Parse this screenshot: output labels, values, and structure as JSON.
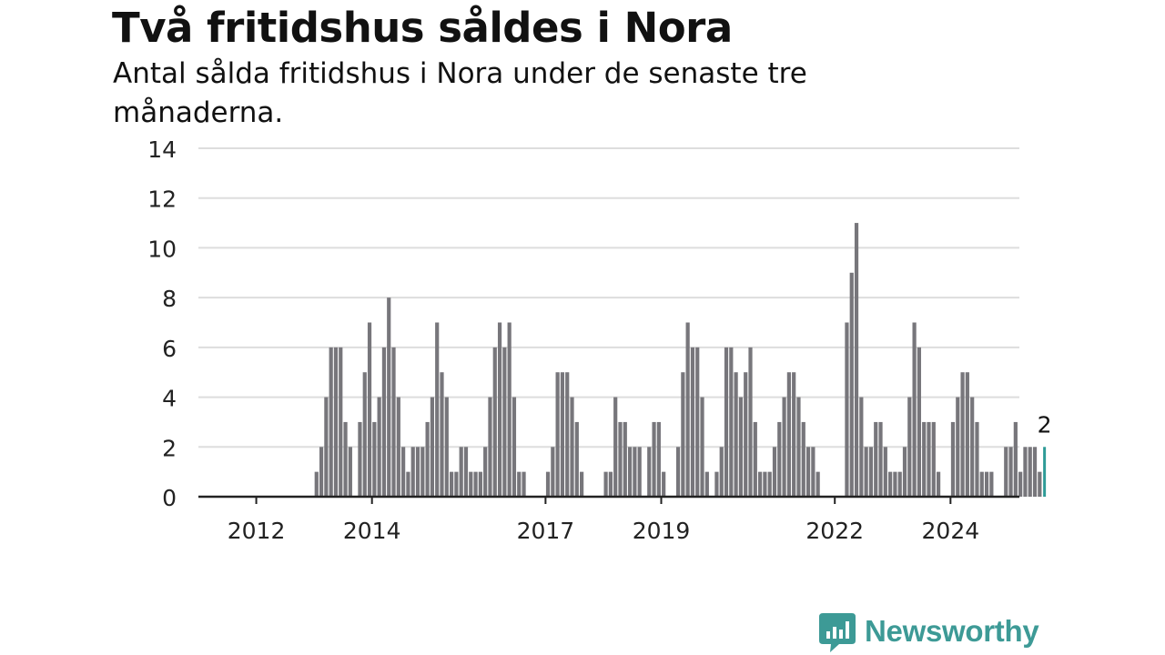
{
  "title": "Två fritidshus såldes i Nora",
  "subtitle": "Antal sålda fritidshus i Nora under de senaste tre månaderna.",
  "brand": {
    "name": "Newsworthy",
    "icon": "newsworthy-chart-icon",
    "color": "#3d9a96"
  },
  "colors": {
    "bar": "#77767b",
    "highlight": "#2e9b97",
    "grid": "#dddddd",
    "axis": "#222222"
  },
  "chart_data": {
    "type": "bar",
    "title": "Två fritidshus såldes i Nora",
    "subtitle": "Antal sålda fritidshus i Nora under de senaste tre månaderna.",
    "xlabel": "",
    "ylabel": "",
    "ylim": [
      0,
      14
    ],
    "yticks": [
      0,
      2,
      4,
      6,
      8,
      10,
      12,
      14
    ],
    "xticks": [
      "2012",
      "2014",
      "2017",
      "2019",
      "2022",
      "2024"
    ],
    "grid": true,
    "start": "2011-01",
    "frequency": "monthly",
    "values": [
      0,
      0,
      0,
      0,
      0,
      0,
      0,
      0,
      0,
      0,
      0,
      0,
      0,
      0,
      0,
      0,
      0,
      0,
      0,
      0,
      0,
      0,
      0,
      0,
      1,
      2,
      4,
      6,
      6,
      6,
      3,
      2,
      0,
      3,
      5,
      7,
      3,
      4,
      6,
      8,
      6,
      4,
      2,
      1,
      2,
      2,
      2,
      3,
      4,
      7,
      5,
      4,
      1,
      1,
      2,
      2,
      1,
      1,
      1,
      2,
      4,
      6,
      7,
      6,
      7,
      4,
      1,
      1,
      0,
      0,
      0,
      0,
      1,
      2,
      5,
      5,
      5,
      4,
      3,
      1,
      0,
      0,
      0,
      0,
      1,
      1,
      4,
      3,
      3,
      2,
      2,
      2,
      0,
      2,
      3,
      3,
      1,
      0,
      0,
      2,
      5,
      7,
      6,
      6,
      4,
      1,
      0,
      1,
      2,
      6,
      6,
      5,
      4,
      5,
      6,
      3,
      1,
      1,
      1,
      2,
      3,
      4,
      5,
      5,
      4,
      3,
      2,
      2,
      1,
      0,
      0,
      0,
      0,
      0,
      7,
      9,
      11,
      4,
      2,
      2,
      3,
      3,
      2,
      1,
      1,
      1,
      2,
      4,
      7,
      6,
      3,
      3,
      3,
      1,
      0,
      0,
      3,
      4,
      5,
      5,
      4,
      3,
      1,
      1,
      1,
      0,
      0,
      2,
      2,
      3,
      1,
      2,
      2,
      2,
      1,
      2
    ],
    "highlight": {
      "index": -1,
      "label": "2"
    }
  }
}
